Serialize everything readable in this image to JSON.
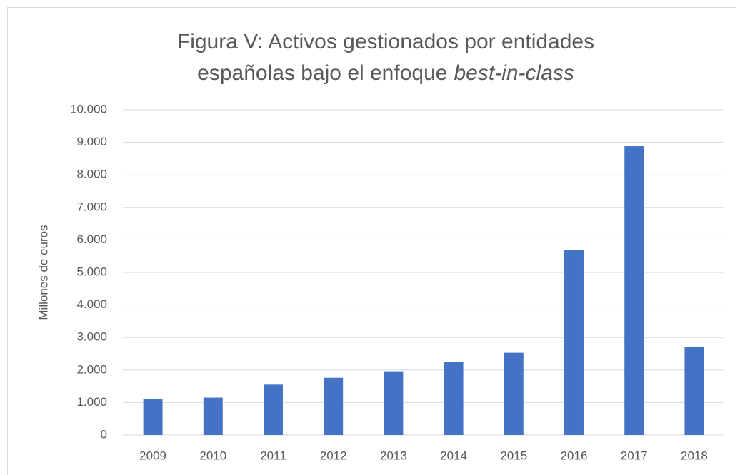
{
  "chart_data": {
    "type": "bar",
    "title": [
      "Figura V: Activos gestionados por entidades",
      "españolas bajo el enfoque",
      "best-in-class"
    ],
    "y_label": "Millones de euros",
    "categories": [
      "2009",
      "2010",
      "2011",
      "2012",
      "2013",
      "2014",
      "2015",
      "2016",
      "2017",
      "2018"
    ],
    "values": [
      1100,
      1150,
      1550,
      1760,
      1960,
      2240,
      2530,
      5700,
      8880,
      2710
    ],
    "color": "#4472c4",
    "ylim": [
      0,
      10000
    ],
    "yticks": [
      0,
      {
        "value": 1000,
        "label": "1.000"
      },
      {
        "value": 2000,
        "label": "2.000"
      },
      {
        "value": 3000,
        "label": "3.000"
      },
      {
        "value": 4000,
        "label": "4.000"
      },
      {
        "value": 5000,
        "label": "5.000"
      },
      {
        "value": 6000,
        "label": "6.000"
      },
      {
        "value": 7000,
        "label": "7.000"
      },
      {
        "value": 8000,
        "label": "8.000"
      },
      {
        "value": 9000,
        "label": "9.000"
      },
      {
        "value": 10000,
        "label": "10.000"
      }
    ],
    "grid": true
  }
}
